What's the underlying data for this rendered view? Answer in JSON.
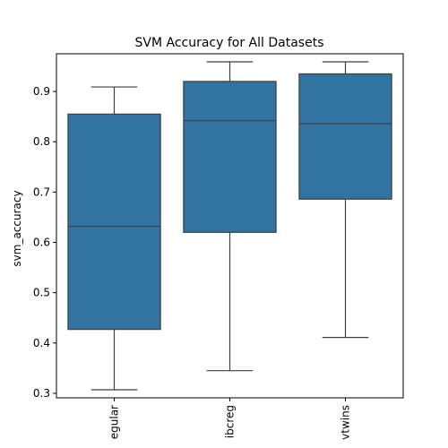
{
  "chart_data": {
    "type": "boxplot",
    "title": "SVM Accuracy for All Datasets",
    "xlabel": "",
    "ylabel": "svm_accuracy",
    "categories": [
      "regular",
      "ibcreg",
      "twins"
    ],
    "category_labels_display": [
      "egular",
      "ibcreg",
      "vtwins"
    ],
    "boxes": [
      {
        "whisker_low": 0.307,
        "q1": 0.427,
        "median": 0.632,
        "q3": 0.855,
        "whisker_high": 0.909
      },
      {
        "whisker_low": 0.345,
        "q1": 0.62,
        "median": 0.842,
        "q3": 0.92,
        "whisker_high": 0.959
      },
      {
        "whisker_low": 0.411,
        "q1": 0.686,
        "median": 0.836,
        "q3": 0.935,
        "whisker_high": 0.959
      }
    ],
    "ylim": [
      0.291,
      0.975
    ],
    "yticks": [
      0.3,
      0.4,
      0.5,
      0.6,
      0.7,
      0.8,
      0.9
    ],
    "box_color": "#3274a1",
    "line_color": "#3f3f3f",
    "grid": false
  }
}
